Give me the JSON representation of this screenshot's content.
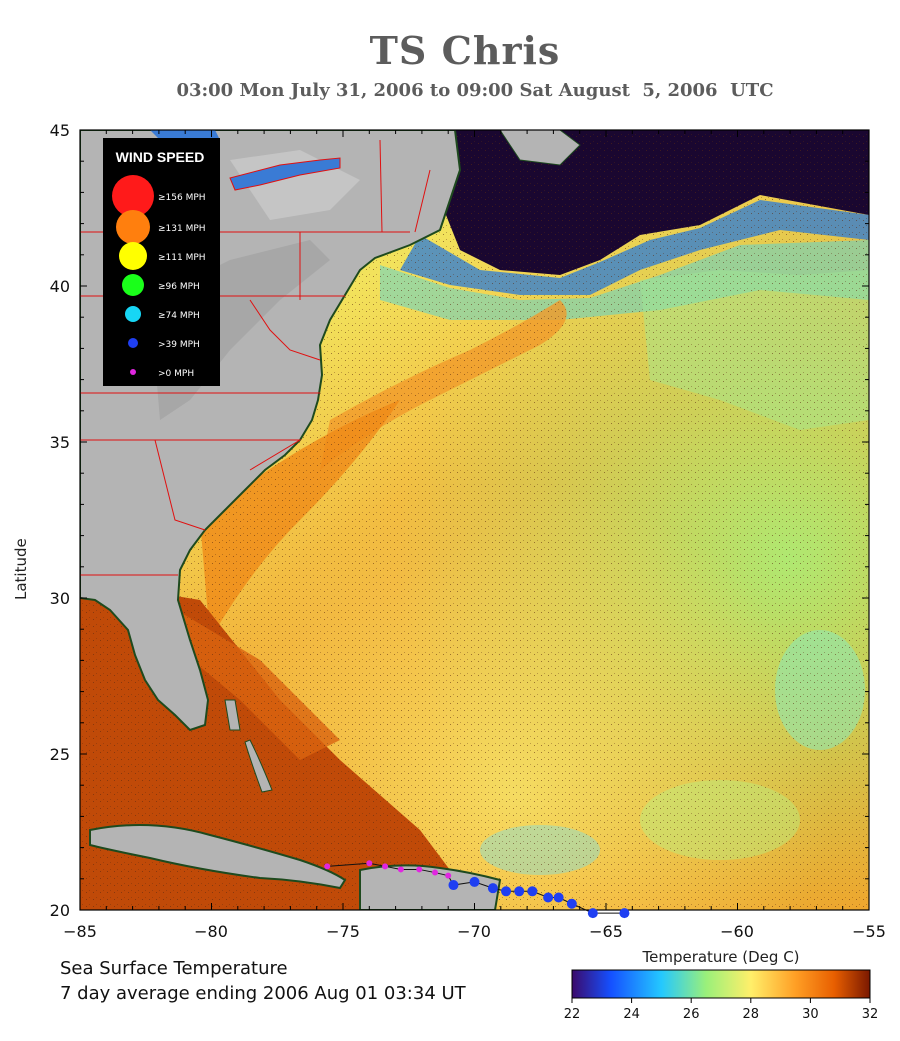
{
  "title": "TS Chris",
  "subtitle": "03:00 Mon July 31, 2006 to 09:00 Sat August  5, 2006  UTC",
  "y_axis_label": "Latitude",
  "x_ticks": [
    "−85",
    "−80",
    "−75",
    "−70",
    "−65",
    "−60",
    "−55"
  ],
  "y_ticks": [
    "45",
    "40",
    "35",
    "30",
    "25",
    "20"
  ],
  "legend": {
    "title": "WIND SPEED",
    "items": [
      {
        "label": "≥156 MPH",
        "color": "#ff1a1a"
      },
      {
        "label": "≥131 MPH",
        "color": "#ff7f0e"
      },
      {
        "label": "≥111 MPH",
        "color": "#ffff00"
      },
      {
        "label": "≥96 MPH",
        "color": "#1aff1a"
      },
      {
        "label": "≥74 MPH",
        "color": "#17d6f5"
      },
      {
        "label": ">39 MPH",
        "color": "#1f3ff2"
      },
      {
        "label": ">0 MPH",
        "color": "#e026e0"
      }
    ]
  },
  "caption_line1": "Sea Surface Temperature",
  "caption_line2": "7 day average ending 2006 Aug 01 03:34 UT",
  "colorbar": {
    "title": "Temperature (Deg C)",
    "ticks": [
      "22",
      "24",
      "26",
      "28",
      "30",
      "32"
    ],
    "colors": [
      "#3b0a6b",
      "#1550ff",
      "#24c8ff",
      "#9af07a",
      "#ffef6a",
      "#ff9f25",
      "#e85f00",
      "#7a1800"
    ]
  },
  "track": [
    {
      "lon": -75.6,
      "lat": 21.4,
      "category": ">0 MPH"
    },
    {
      "lon": -74.0,
      "lat": 21.5,
      "category": ">0 MPH"
    },
    {
      "lon": -73.4,
      "lat": 21.4,
      "category": ">0 MPH"
    },
    {
      "lon": -72.8,
      "lat": 21.3,
      "category": ">0 MPH"
    },
    {
      "lon": -72.1,
      "lat": 21.3,
      "category": ">0 MPH"
    },
    {
      "lon": -71.5,
      "lat": 21.2,
      "category": ">0 MPH"
    },
    {
      "lon": -71.0,
      "lat": 21.1,
      "category": ">0 MPH"
    },
    {
      "lon": -70.8,
      "lat": 20.8,
      "category": ">39 MPH"
    },
    {
      "lon": -70.0,
      "lat": 20.9,
      "category": ">39 MPH"
    },
    {
      "lon": -69.3,
      "lat": 20.7,
      "category": ">39 MPH"
    },
    {
      "lon": -68.8,
      "lat": 20.6,
      "category": ">39 MPH"
    },
    {
      "lon": -68.3,
      "lat": 20.6,
      "category": ">39 MPH"
    },
    {
      "lon": -67.8,
      "lat": 20.6,
      "category": ">39 MPH"
    },
    {
      "lon": -67.2,
      "lat": 20.4,
      "category": ">39 MPH"
    },
    {
      "lon": -66.8,
      "lat": 20.4,
      "category": ">39 MPH"
    },
    {
      "lon": -66.3,
      "lat": 20.2,
      "category": ">39 MPH"
    },
    {
      "lon": -65.5,
      "lat": 19.9,
      "category": ">39 MPH"
    },
    {
      "lon": -64.3,
      "lat": 19.9,
      "category": ">39 MPH"
    }
  ]
}
